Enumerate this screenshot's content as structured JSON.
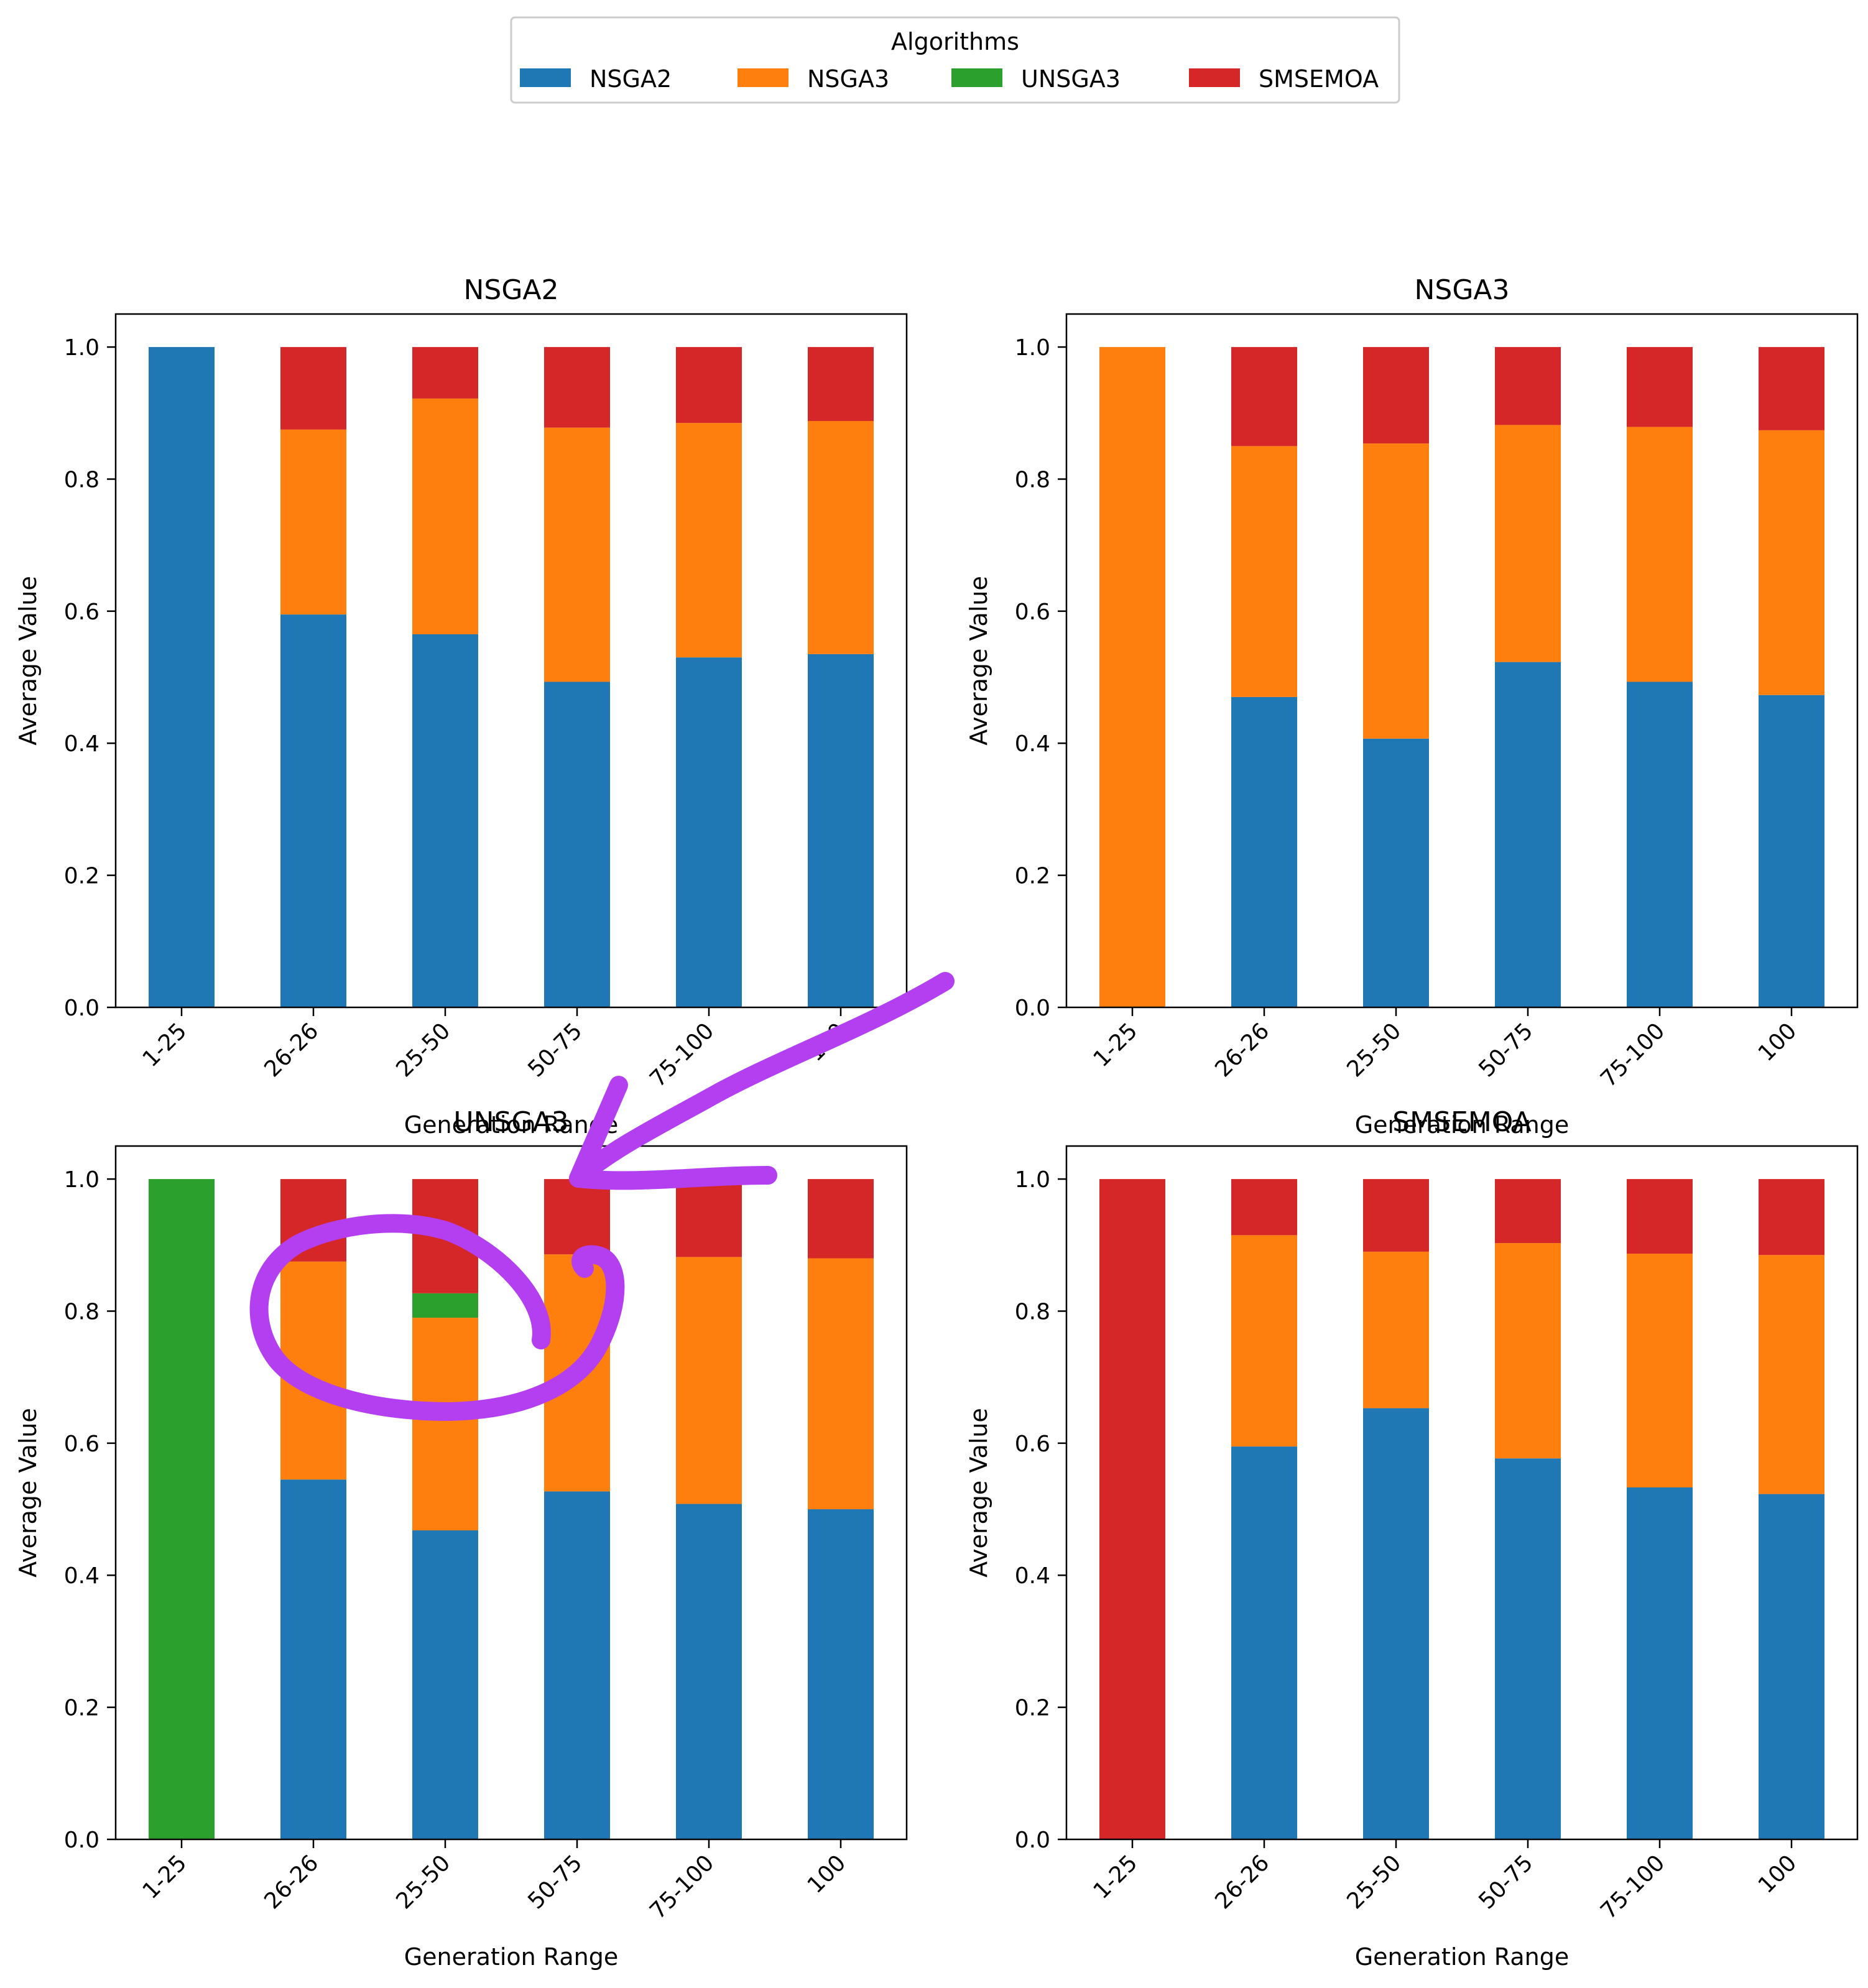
{
  "legend": {
    "title": "Algorithms",
    "placement": "upper-center",
    "entries": [
      {
        "label": "NSGA2",
        "color": "#1f77b4"
      },
      {
        "label": "NSGA3",
        "color": "#ff7f0e"
      },
      {
        "label": "UNSGA3",
        "color": "#2ca02c"
      },
      {
        "label": "SMSEMOA",
        "color": "#d62728"
      }
    ]
  },
  "annotation": {
    "kind": "hand-drawn arrow and circle",
    "color": "#b33ff0"
  },
  "chart_data": [
    {
      "type": "bar",
      "stacked": true,
      "title": "NSGA2",
      "xlabel": "Generation Range",
      "ylabel": "Average Value",
      "ylim": [
        0,
        1.05
      ],
      "yticks": [
        "0.0",
        "0.2",
        "0.4",
        "0.6",
        "0.8",
        "1.0"
      ],
      "categories": [
        "1-25",
        "26-26",
        "25-50",
        "50-75",
        "75-100",
        "100"
      ],
      "series": [
        {
          "name": "NSGA2",
          "values": [
            1.0,
            0.595,
            0.565,
            0.493,
            0.53,
            0.535
          ]
        },
        {
          "name": "NSGA3",
          "values": [
            0.0,
            0.28,
            0.357,
            0.385,
            0.355,
            0.353
          ]
        },
        {
          "name": "UNSGA3",
          "values": [
            0.0,
            0.0,
            0.0,
            0.0,
            0.0,
            0.0
          ]
        },
        {
          "name": "SMSEMOA",
          "values": [
            0.0,
            0.125,
            0.078,
            0.122,
            0.115,
            0.112
          ]
        }
      ]
    },
    {
      "type": "bar",
      "stacked": true,
      "title": "NSGA3",
      "xlabel": "Generation Range",
      "ylabel": "Average Value",
      "ylim": [
        0,
        1.05
      ],
      "yticks": [
        "0.0",
        "0.2",
        "0.4",
        "0.6",
        "0.8",
        "1.0"
      ],
      "categories": [
        "1-25",
        "26-26",
        "25-50",
        "50-75",
        "75-100",
        "100"
      ],
      "series": [
        {
          "name": "NSGA2",
          "values": [
            0.0,
            0.47,
            0.407,
            0.523,
            0.493,
            0.473
          ]
        },
        {
          "name": "NSGA3",
          "values": [
            1.0,
            0.38,
            0.447,
            0.359,
            0.386,
            0.401
          ]
        },
        {
          "name": "UNSGA3",
          "values": [
            0.0,
            0.0,
            0.0,
            0.0,
            0.0,
            0.0
          ]
        },
        {
          "name": "SMSEMOA",
          "values": [
            0.0,
            0.15,
            0.146,
            0.118,
            0.121,
            0.126
          ]
        }
      ]
    },
    {
      "type": "bar",
      "stacked": true,
      "title": "UNSGA3",
      "xlabel": "Generation Range",
      "ylabel": "Average Value",
      "ylim": [
        0,
        1.05
      ],
      "yticks": [
        "0.0",
        "0.2",
        "0.4",
        "0.6",
        "0.8",
        "1.0"
      ],
      "categories": [
        "1-25",
        "26-26",
        "25-50",
        "50-75",
        "75-100",
        "100"
      ],
      "series": [
        {
          "name": "NSGA2",
          "values": [
            0.0,
            0.545,
            0.468,
            0.527,
            0.508,
            0.5
          ]
        },
        {
          "name": "NSGA3",
          "values": [
            0.0,
            0.33,
            0.322,
            0.359,
            0.374,
            0.38
          ]
        },
        {
          "name": "UNSGA3",
          "values": [
            1.0,
            0.0,
            0.037,
            0.0,
            0.0,
            0.0
          ]
        },
        {
          "name": "SMSEMOA",
          "values": [
            0.0,
            0.125,
            0.173,
            0.114,
            0.118,
            0.12
          ]
        }
      ]
    },
    {
      "type": "bar",
      "stacked": true,
      "title": "SMSEMOA",
      "xlabel": "Generation Range",
      "ylabel": "Average Value",
      "ylim": [
        0,
        1.05
      ],
      "yticks": [
        "0.0",
        "0.2",
        "0.4",
        "0.6",
        "0.8",
        "1.0"
      ],
      "categories": [
        "1-25",
        "26-26",
        "25-50",
        "50-75",
        "75-100",
        "100"
      ],
      "series": [
        {
          "name": "NSGA2",
          "values": [
            0.0,
            0.595,
            0.653,
            0.577,
            0.533,
            0.523
          ]
        },
        {
          "name": "NSGA3",
          "values": [
            0.0,
            0.32,
            0.237,
            0.326,
            0.354,
            0.362
          ]
        },
        {
          "name": "UNSGA3",
          "values": [
            0.0,
            0.0,
            0.0,
            0.0,
            0.0,
            0.0
          ]
        },
        {
          "name": "SMSEMOA",
          "values": [
            1.0,
            0.085,
            0.11,
            0.097,
            0.113,
            0.115
          ]
        }
      ]
    }
  ]
}
